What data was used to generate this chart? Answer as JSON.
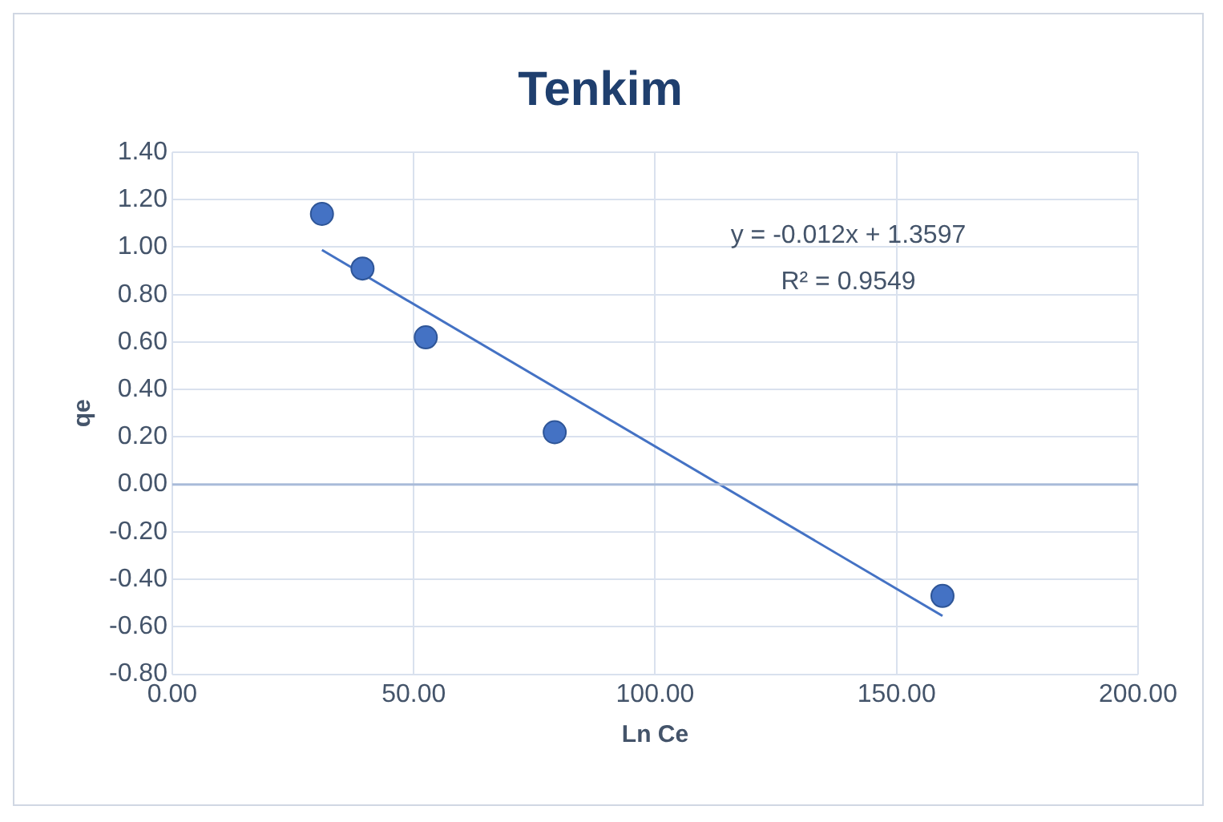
{
  "chart_data": {
    "type": "scatter",
    "title": "Tenkim",
    "xlabel": "Ln Ce",
    "ylabel": "qe",
    "series": [
      {
        "color": "#4472c4",
        "x": [
          31.0,
          39.4,
          52.5,
          79.2,
          159.5
        ],
        "values": [
          1.14,
          0.91,
          0.62,
          0.22,
          -0.47
        ],
        "marker": "circle"
      },
      {
        "type": "line",
        "color": "#4472c4",
        "x": [
          31.0,
          159.5
        ],
        "values": [
          0.988,
          -0.554
        ],
        "marker": "none",
        "line_style": "solid"
      }
    ],
    "annotations": [
      "y = -0.012x + 1.3597",
      "R² = 0.9549"
    ],
    "xlim": [
      0,
      200
    ],
    "ylim": [
      -0.8,
      1.4
    ],
    "xticks": [
      {
        "value": 0,
        "label": "0.00"
      },
      {
        "value": 50,
        "label": "50.00"
      },
      {
        "value": 100,
        "label": "100.00"
      },
      {
        "value": 150,
        "label": "150.00"
      },
      {
        "value": 200,
        "label": "200.00"
      }
    ],
    "yticks": [
      {
        "value": -0.8,
        "label": "-0.80"
      },
      {
        "value": -0.6,
        "label": "-0.60"
      },
      {
        "value": -0.4,
        "label": "-0.40"
      },
      {
        "value": -0.2,
        "label": "-0.20"
      },
      {
        "value": 0,
        "label": "0.00"
      },
      {
        "value": 0.2,
        "label": "0.20"
      },
      {
        "value": 0.4,
        "label": "0.40"
      },
      {
        "value": 0.6,
        "label": "0.60"
      },
      {
        "value": 0.8,
        "label": "0.80"
      },
      {
        "value": 1.0,
        "label": "1.00"
      },
      {
        "value": 1.2,
        "label": "1.20"
      },
      {
        "value": 1.4,
        "label": "1.40"
      }
    ],
    "ref_lines": [
      {
        "axis": "y",
        "value": 0,
        "color": "#a9bbd9"
      }
    ],
    "grid": true,
    "legend": false
  }
}
